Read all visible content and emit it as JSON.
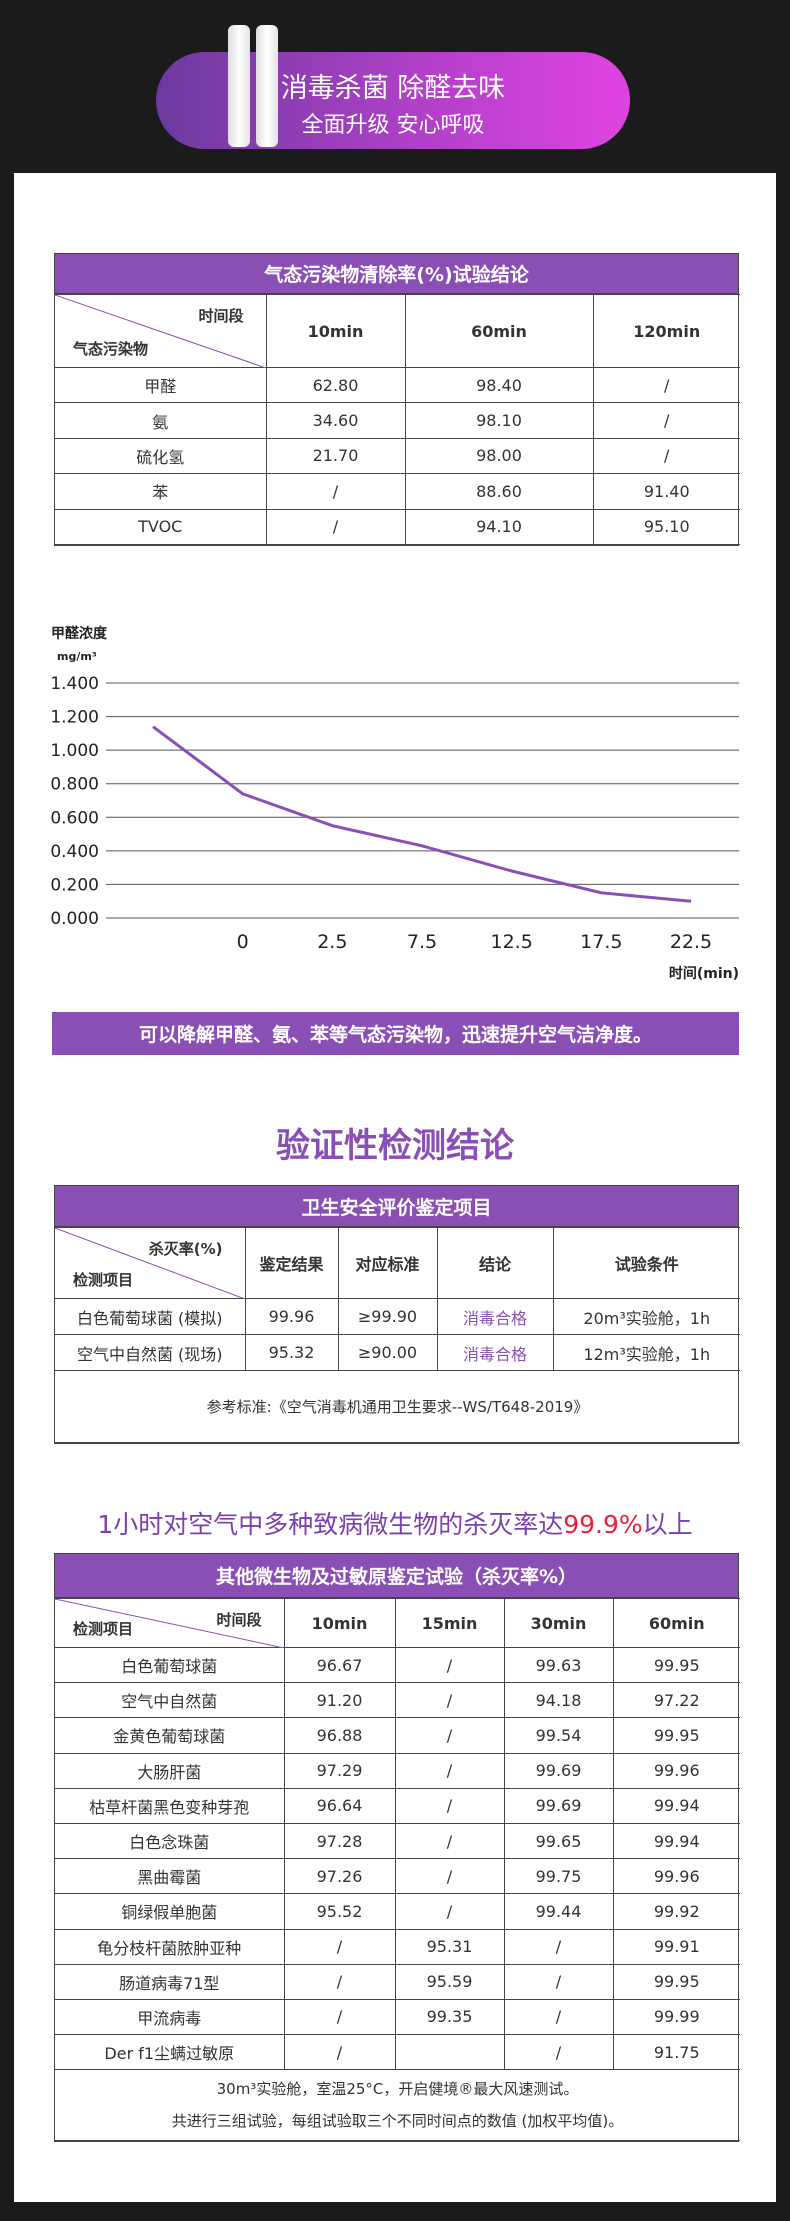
{
  "banner": {
    "line1": "消毒杀菌 除醛去味",
    "line2": "全面升级 安心呼吸"
  },
  "table1": {
    "title": "气态污染物清除率(%)试验结论",
    "corner_top": "时间段",
    "corner_bottom": "气态污染物",
    "columns": [
      "10min",
      "60min",
      "120min"
    ],
    "rows": [
      [
        "甲醛",
        "62.80",
        "98.40",
        "/"
      ],
      [
        "氨",
        "34.60",
        "98.10",
        "/"
      ],
      [
        "硫化氢",
        "21.70",
        "98.00",
        "/"
      ],
      [
        "苯",
        "/",
        "88.60",
        "91.40"
      ],
      [
        "TVOC",
        "/",
        "94.10",
        "95.10"
      ]
    ]
  },
  "chart_data": {
    "type": "line",
    "y_label": "甲醛浓度",
    "y_unit": "mg/m³",
    "x_label": "时间(min)",
    "categories": [
      null,
      "0",
      "2.5",
      "7.5",
      "12.5",
      "17.5",
      "22.5"
    ],
    "series": [
      {
        "name": "甲醛浓度",
        "color": "#8a4fb5",
        "values": [
          1.14,
          0.74,
          0.55,
          0.43,
          0.28,
          0.15,
          0.1
        ]
      }
    ],
    "ylim": [
      0,
      1.4
    ],
    "yticks": [
      {
        "value": 0,
        "label": "0.000"
      },
      {
        "value": 0.2,
        "label": "0.200"
      },
      {
        "value": 0.4,
        "label": "0.400"
      },
      {
        "value": 0.6,
        "label": "0.600"
      },
      {
        "value": 0.8,
        "label": "0.800"
      },
      {
        "value": 1,
        "label": "1.000"
      },
      {
        "value": 1.2,
        "label": "1.200"
      },
      {
        "value": 1.4,
        "label": "1.400"
      }
    ],
    "grid": true
  },
  "summary": "可以降解甲醛、氨、苯等气态污染物，迅速提升空气洁净度。",
  "section_title": "验证性检测结论",
  "table2": {
    "title": "卫生安全评价鉴定项目",
    "corner_top": "杀灭率(%)",
    "corner_bottom": "检测项目",
    "columns": [
      "鉴定结果",
      "对应标准",
      "结论",
      "试验条件"
    ],
    "rows": [
      [
        "白色葡萄球菌 (模拟)",
        "99.96",
        "≥99.90",
        "消毒合格",
        "20m³实验舱，1h"
      ],
      [
        "空气中自然菌 (现场)",
        "95.32",
        "≥90.00",
        "消毒合格",
        "12m³实验舱，1h"
      ]
    ],
    "note": "参考标准:《空气消毒机通用卫生要求--WS/T648-2019》"
  },
  "highlight": [
    "1小时对空气中多种致病微生物的杀灭率达",
    "99.9%",
    "以上"
  ],
  "table3": {
    "title": "其他微生物及过敏原鉴定试验（杀灭率%）",
    "corner_top": "时间段",
    "corner_bottom": "检测项目",
    "columns": [
      "10min",
      "15min",
      "30min",
      "60min"
    ],
    "rows": [
      [
        "白色葡萄球菌",
        "96.67",
        "/",
        "99.63",
        "99.95"
      ],
      [
        "空气中自然菌",
        "91.20",
        "/",
        "94.18",
        "97.22"
      ],
      [
        "金黄色葡萄球菌",
        "96.88",
        "/",
        "99.54",
        "99.95"
      ],
      [
        "大肠肝菌",
        "97.29",
        "/",
        "99.69",
        "99.96"
      ],
      [
        "枯草杆菌黑色变种芽孢",
        "96.64",
        "/",
        "99.69",
        "99.94"
      ],
      [
        "白色念珠菌",
        "97.28",
        "/",
        "99.65",
        "99.94"
      ],
      [
        "黑曲霉菌",
        "97.26",
        "/",
        "99.75",
        "99.96"
      ],
      [
        "铜绿假单胞菌",
        "95.52",
        "/",
        "99.44",
        "99.92"
      ],
      [
        "龟分枝杆菌脓肿亚种",
        "/",
        "95.31",
        "/",
        "99.91"
      ],
      [
        "肠道病毒71型",
        "/",
        "95.59",
        "/",
        "99.95"
      ],
      [
        "甲流病毒",
        "/",
        "99.35",
        "/",
        "99.99"
      ],
      [
        "Der f1尘螨过敏原",
        "/",
        null,
        "/",
        "91.75"
      ]
    ],
    "notes": [
      "30m³实验舱，室温25°C，开启健境®最大风速测试。",
      "共进行三组试验，每组试验取三个不同时间点的数值 (加权平均值)。"
    ]
  }
}
